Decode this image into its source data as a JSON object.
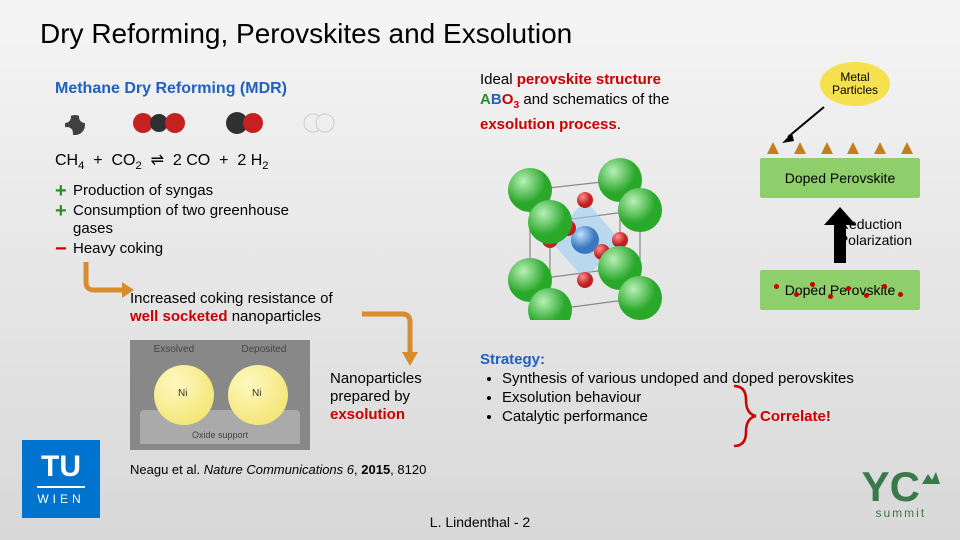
{
  "title": "Dry Reforming, Perovskites and Exsolution",
  "mdr": {
    "heading": "Methane Dry Reforming (MDR)",
    "heading_color": "#2060c0",
    "equation_html": "CH<sub>4</sub>&nbsp;&nbsp;+&nbsp;&nbsp;CO<sub>2</sub>&nbsp;&nbsp;&#8652;&nbsp;&nbsp;2 CO&nbsp;&nbsp;+&nbsp;&nbsp;2 H<sub>2</sub>",
    "bullets": [
      {
        "sym": "+",
        "sym_class": "plus",
        "text": "Production of syngas"
      },
      {
        "sym": "+",
        "sym_class": "plus",
        "text": "Consumption of two greenhouse gases"
      },
      {
        "sym": "−",
        "sym_class": "minus",
        "text": "Heavy coking"
      }
    ],
    "coking_line1": "Increased coking resistance of",
    "coking_well": "well socketed",
    "coking_line2": " nanoparticles",
    "nano_line1": "Nanoparticles",
    "nano_line2": "prepared by",
    "nano_exsolution": "exsolution"
  },
  "ni_figure": {
    "label_left": "Exsolved",
    "label_right": "Deposited",
    "ni": "Ni",
    "support": "Oxide support"
  },
  "citation": {
    "author": "Neagu et al. ",
    "journal": "Nature Communications",
    "vol": " 6",
    "year": "2015",
    "page": ", 8120"
  },
  "footer": "L. Lindenthal  -  2",
  "tu": {
    "top": "TU",
    "bottom": "WIEN",
    "bg": "#0073cf"
  },
  "yc": {
    "top": "YC",
    "bottom": "summit",
    "color": "#3a7a4a"
  },
  "right": {
    "line1a": "Ideal ",
    "line1b": "perovskite structure",
    "line2_a": "A",
    "line2_b": "B",
    "line2_o": "O",
    "line2_sub": "3",
    "line2_rest": " and schematics of the",
    "line3": "exsolution process",
    "metal_label": "Metal Particles",
    "box_label": "Doped Perovskite",
    "arrow_label1": "Reduction",
    "arrow_label2": "Polarization"
  },
  "crystal": {
    "A_color": "#3ac23a",
    "B_color": "#4a90d9",
    "O_color": "#e03030",
    "A_r": 22,
    "B_r": 14,
    "O_r": 8
  },
  "strategy": {
    "heading": "Strategy:",
    "items": [
      "Synthesis of various undoped and doped perovskites",
      "Exsolution behaviour",
      "Catalytic performance"
    ],
    "correlate": "Correlate!"
  },
  "colors": {
    "arrow_orange": "#d98c2e",
    "well_red": "#c00000",
    "box_green": "#8fcf6b",
    "triangle": "#c08020"
  }
}
